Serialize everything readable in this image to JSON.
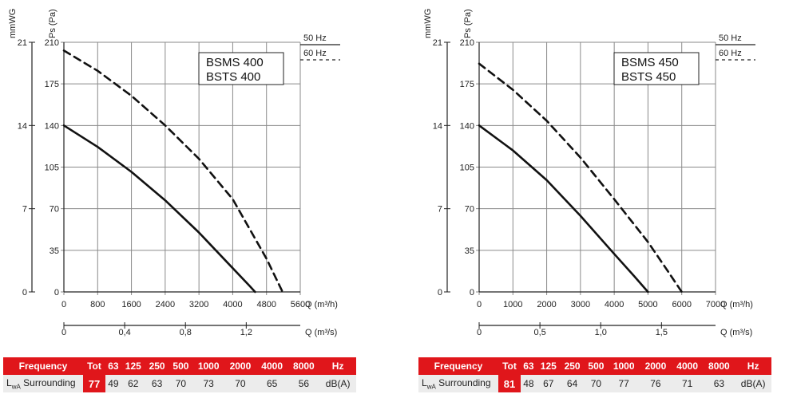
{
  "charts": [
    {
      "model_line1": "BSMS 400",
      "model_line2": "BSTS 400",
      "unit_left": "mmWG",
      "unit_ps": "Ps (Pa)",
      "legend_50": "50 Hz",
      "legend_60": "60 Hz",
      "q_m3h_label": "Q (m³/h)",
      "q_m3s_label": "Q (m³/s)",
      "mmwg_ticks": [
        "0",
        "7",
        "14",
        "21"
      ],
      "pa_ticks": [
        "0",
        "35",
        "70",
        "105",
        "140",
        "175",
        "210"
      ],
      "m3h_ticks": [
        "0",
        "800",
        "1600",
        "2400",
        "3200",
        "4000",
        "4800",
        "5600"
      ],
      "m3s_ticks": [
        "0",
        "0,4",
        "0,8",
        "1,2"
      ],
      "m3s_values": [
        0,
        0.4,
        0.8,
        1.2
      ],
      "table": {
        "header": [
          "Frequency",
          "Tot",
          "63",
          "125",
          "250",
          "500",
          "1000",
          "2000",
          "4000",
          "8000",
          "Hz"
        ],
        "row_label_main": "L",
        "row_label_sub": "wA",
        "row_label_rest": " Surrounding",
        "values": [
          "77",
          "49",
          "62",
          "63",
          "70",
          "73",
          "70",
          "65",
          "56",
          "dB(A)"
        ]
      }
    },
    {
      "model_line1": "BSMS 450",
      "model_line2": "BSTS 450",
      "unit_left": "mmWG",
      "unit_ps": "Ps (Pa)",
      "legend_50": "50 Hz",
      "legend_60": "60 Hz",
      "q_m3h_label": "Q (m³/h)",
      "q_m3s_label": "Q (m³/s)",
      "mmwg_ticks": [
        "0",
        "7",
        "14",
        "21"
      ],
      "pa_ticks": [
        "0",
        "35",
        "70",
        "105",
        "140",
        "175",
        "210"
      ],
      "m3h_ticks": [
        "0",
        "1000",
        "2000",
        "3000",
        "4000",
        "5000",
        "6000",
        "7000"
      ],
      "m3s_ticks": [
        "0",
        "0,5",
        "1,0",
        "1,5"
      ],
      "m3s_values": [
        0,
        0.5,
        1.0,
        1.5
      ],
      "table": {
        "header": [
          "Frequency",
          "Tot",
          "63",
          "125",
          "250",
          "500",
          "1000",
          "2000",
          "4000",
          "8000",
          "Hz"
        ],
        "row_label_main": "L",
        "row_label_sub": "wA",
        "row_label_rest": " Surrounding",
        "values": [
          "81",
          "48",
          "67",
          "64",
          "70",
          "77",
          "76",
          "71",
          "63",
          "dB(A)"
        ]
      }
    }
  ],
  "chart_data": [
    {
      "type": "line",
      "title": "BSMS 400 / BSTS 400",
      "xlabel": "Q (m³/h)",
      "ylabel": "Ps (Pa)",
      "xlim": [
        0,
        5600
      ],
      "ylim": [
        0,
        210
      ],
      "grid": true,
      "series": [
        {
          "name": "50 Hz",
          "style": "solid",
          "x": [
            0,
            800,
            1600,
            2400,
            3200,
            4000,
            4400,
            4530
          ],
          "y": [
            140,
            122,
            101,
            77,
            50,
            20,
            5,
            0
          ]
        },
        {
          "name": "60 Hz",
          "style": "dashed",
          "x": [
            0,
            800,
            1600,
            2400,
            3200,
            4000,
            4800,
            5180
          ],
          "y": [
            203,
            186,
            165,
            140,
            112,
            78,
            28,
            0
          ]
        }
      ]
    },
    {
      "type": "line",
      "title": "BSMS 450 / BSTS 450",
      "xlabel": "Q (m³/h)",
      "ylabel": "Ps (Pa)",
      "xlim": [
        0,
        7000
      ],
      "ylim": [
        0,
        210
      ],
      "grid": true,
      "series": [
        {
          "name": "50 Hz",
          "style": "solid",
          "x": [
            0,
            1000,
            2000,
            3000,
            4000,
            4600,
            5000
          ],
          "y": [
            140,
            119,
            94,
            64,
            32,
            13,
            0
          ]
        },
        {
          "name": "60 Hz",
          "style": "dashed",
          "x": [
            0,
            1000,
            2000,
            3000,
            4000,
            5000,
            5600,
            6000
          ],
          "y": [
            192,
            170,
            144,
            113,
            78,
            42,
            17,
            0
          ]
        }
      ]
    }
  ]
}
